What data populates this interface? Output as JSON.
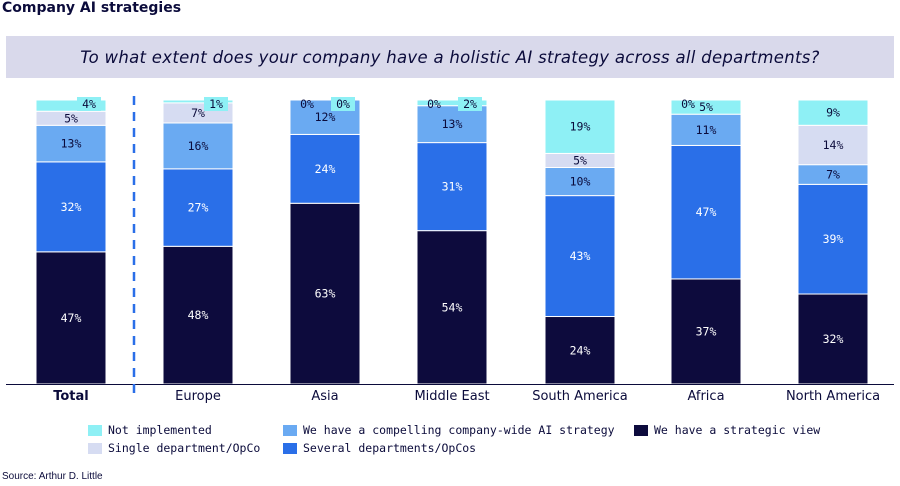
{
  "title": "Company AI strategies",
  "question": "To what extent does your company have a holistic AI strategy across all departments?",
  "source": "Source: Arthur D. Little",
  "colors": {
    "not_implemented": "#8ef0f5",
    "single_department": "#d6dcf2",
    "compelling_strategy": "#6aaaf2",
    "several_departments": "#2a6fe8",
    "strategic_view": "#0d0b3d",
    "banner": "#d9d9eb",
    "divider": "#2a6fe8"
  },
  "legend": [
    {
      "key": "not_implemented",
      "label": "Not implemented"
    },
    {
      "key": "single_department",
      "label": "Single department/OpCo"
    },
    {
      "key": "compelling_strategy",
      "label": "We have a compelling company-wide AI strategy"
    },
    {
      "key": "several_departments",
      "label": "Several departments/OpCos"
    },
    {
      "key": "strategic_view",
      "label": "We have a strategic view"
    }
  ],
  "chart_data": {
    "type": "bar",
    "stacked": true,
    "percent_stacked": true,
    "categories": [
      "Total",
      "Europe",
      "Asia",
      "Middle East",
      "South America",
      "Africa",
      "North America"
    ],
    "bold_categories": [
      "Total"
    ],
    "series": [
      {
        "key": "strategic_view",
        "name": "We have a strategic view",
        "values": [
          47,
          48,
          63,
          54,
          24,
          37,
          32
        ],
        "labels": [
          "47%",
          "48%",
          "63%",
          "54%",
          "24%",
          "37%",
          "32%"
        ]
      },
      {
        "key": "several_departments",
        "name": "Several departments/OpCos",
        "values": [
          32,
          27,
          24,
          31,
          43,
          47,
          39
        ],
        "labels": [
          "32%",
          "27%",
          "24%",
          "31%",
          "43%",
          "47%",
          "39%"
        ]
      },
      {
        "key": "compelling_strategy",
        "name": "We have a compelling company-wide AI strategy",
        "values": [
          13,
          16,
          12,
          13,
          10,
          11,
          7
        ],
        "labels": [
          "13%",
          "16%",
          "12%",
          "13%",
          "10%",
          "11%",
          "7%"
        ]
      },
      {
        "key": "single_department",
        "name": "Single department/OpCo",
        "values": [
          5,
          7,
          0,
          0,
          5,
          0,
          14
        ],
        "labels": [
          "5%",
          "7%",
          "0%",
          "0%",
          "5%",
          "0%",
          "14%"
        ]
      },
      {
        "key": "not_implemented",
        "name": "Not implemented",
        "values": [
          4,
          1,
          0,
          2,
          19,
          5,
          9
        ],
        "labels": [
          "4%",
          "1%",
          "0%",
          "2%",
          "19%",
          "5%",
          "9%"
        ]
      }
    ],
    "ylim": [
      0,
      100
    ],
    "divider_after_category": "Total",
    "grid": false,
    "legend_position": "bottom"
  }
}
